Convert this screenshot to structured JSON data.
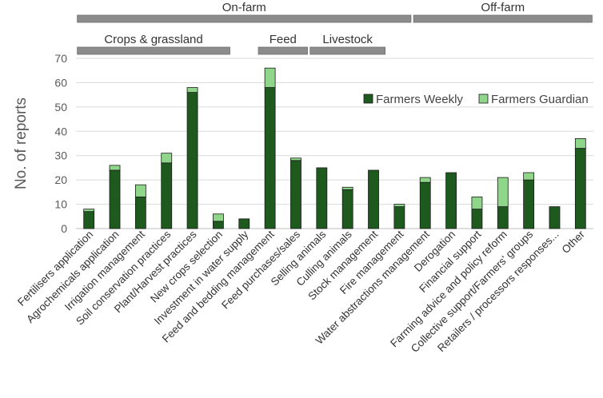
{
  "chart_data": {
    "type": "bar",
    "stacked": true,
    "ylabel": "No. of reports",
    "xlabel": "",
    "ylim": [
      0,
      70
    ],
    "yticks": [
      0,
      10,
      20,
      30,
      40,
      50,
      60,
      70
    ],
    "grid": true,
    "legend_position": "top-right",
    "categories": [
      "Fertilisers application",
      "Agrochemicals application",
      "Irrigation management",
      "Soil conservation practices",
      "Plant/Harvest practices",
      "New crops selection",
      "Investment in water supply",
      "Feed and bedding management",
      "Feed purchases/sales",
      "Selling animals",
      "Culling animals",
      "Stock management",
      "Fire management",
      "Water abstractions management",
      "Derogation",
      "Financial support",
      "Farming advice and policy reform",
      "Collective support/Farmers' groups",
      "Retailers / processors responses...",
      "Other"
    ],
    "series": [
      {
        "name": "Farmers Weekly",
        "color": "#1e5a1e",
        "values": [
          7,
          24,
          13,
          27,
          56,
          3,
          4,
          58,
          28,
          25,
          16,
          24,
          9,
          19,
          23,
          8,
          9,
          20,
          9,
          33
        ]
      },
      {
        "name": "Farmers Guardian",
        "color": "#8fd68a",
        "values": [
          1,
          2,
          5,
          4,
          2,
          3,
          0,
          8,
          1,
          0,
          1,
          0,
          1,
          2,
          0,
          5,
          12,
          3,
          0,
          4
        ]
      }
    ],
    "groups": [
      {
        "label": "On-farm",
        "level": 1,
        "from": 0,
        "to": 12
      },
      {
        "label": "Off-farm",
        "level": 1,
        "from": 13,
        "to": 19
      },
      {
        "label": "Crops & grassland",
        "level": 2,
        "from": 0,
        "to": 5
      },
      {
        "label": "Feed",
        "level": 2,
        "from": 7,
        "to": 8
      },
      {
        "label": "Livestock",
        "level": 2,
        "from": 9,
        "to": 11
      }
    ]
  },
  "colors": {
    "group_bar": "#8c8c8c",
    "gridline": "#d9d9d9",
    "axis_text": "#595959",
    "bar_outline": "#1a1a1a"
  }
}
